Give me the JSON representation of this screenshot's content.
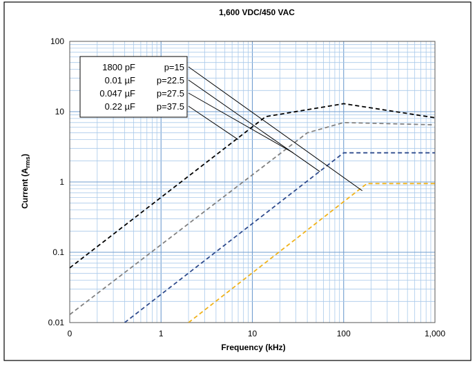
{
  "chart_data": {
    "type": "line",
    "title": "1,600 VDC/450 VAC",
    "xlabel": "Frequency (kHz)",
    "ylabel": {
      "main": "Current (A",
      "sub": "rms",
      "end": ")"
    },
    "x_scale": "log",
    "y_scale": "log",
    "xlim": [
      0.1,
      1000
    ],
    "ylim": [
      0.01,
      100
    ],
    "x_ticks": [
      {
        "value": 0.1,
        "label": "0"
      },
      {
        "value": 1,
        "label": "1"
      },
      {
        "value": 10,
        "label": "10"
      },
      {
        "value": 100,
        "label": "100"
      },
      {
        "value": 1000,
        "label": "1,000"
      }
    ],
    "y_ticks": [
      {
        "value": 0.01,
        "label": "0.01"
      },
      {
        "value": 0.1,
        "label": "0.1"
      },
      {
        "value": 1,
        "label": "1"
      },
      {
        "value": 10,
        "label": "10"
      },
      {
        "value": 100,
        "label": "100"
      }
    ],
    "grid": true,
    "legend_position": "top-left",
    "series": [
      {
        "name": "1800 pF  p=15",
        "legend_cap": "1800  pF",
        "legend_p": "p=15",
        "color": "#f0b21a",
        "style": "dashed",
        "points": [
          [
            2,
            0.01
          ],
          [
            180,
            0.95
          ],
          [
            1000,
            0.95
          ]
        ],
        "leader_to": [
          160,
          0.75
        ]
      },
      {
        "name": "0.01  µF  p=22.5",
        "legend_cap": "0.01  µF",
        "legend_p": "p=22.5",
        "color": "#2e4a8c",
        "style": "dashed",
        "points": [
          [
            0.4,
            0.01
          ],
          [
            100,
            2.6
          ],
          [
            1000,
            2.6
          ]
        ],
        "leader_to": [
          55,
          1.4
        ]
      },
      {
        "name": "0.047 µF  p=27.5",
        "legend_cap": "0.047 µF",
        "legend_p": "p=27.5",
        "color": "#808080",
        "style": "dashed",
        "points": [
          [
            0.1,
            0.013
          ],
          [
            40,
            5.0
          ],
          [
            100,
            7.0
          ],
          [
            1000,
            6.5
          ]
        ],
        "leader_to": [
          28,
          2.6
        ]
      },
      {
        "name": "0.22  µF  p=37.5",
        "legend_cap": "0.22  µF",
        "legend_p": "p=37.5",
        "color": "#000000",
        "style": "dashed",
        "points": [
          [
            0.1,
            0.06
          ],
          [
            14,
            8.5
          ],
          [
            100,
            13.0
          ],
          [
            1000,
            8.2
          ]
        ],
        "leader_to": [
          7,
          4.0
        ]
      }
    ],
    "legend_order": [
      0,
      1,
      2,
      3
    ]
  }
}
